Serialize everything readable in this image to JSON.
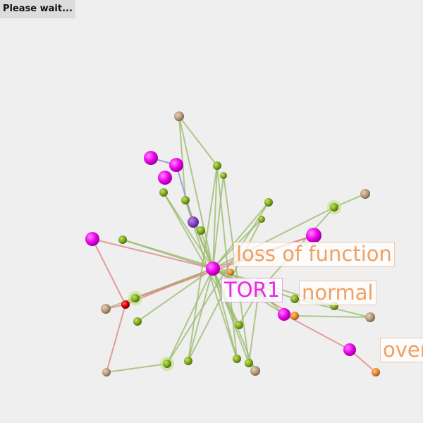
{
  "status": {
    "text": "Please wait..."
  },
  "labels": {
    "tor1": "TOR1",
    "loss_of_function": "loss of function",
    "normal": "normal",
    "over": "over"
  },
  "colors": {
    "background": "#efefef",
    "gene_node": "#ee00ee",
    "phenotype_node": "#88b020",
    "chemical_node": "#bca080",
    "highlight_node": "#e88a30",
    "red_node": "#d00000",
    "purple_node": "#8844bb",
    "green_edge": "#98b868",
    "red_edge": "#e08080",
    "blue_edge": "#8888cc",
    "label_text": "#f0a060"
  }
}
